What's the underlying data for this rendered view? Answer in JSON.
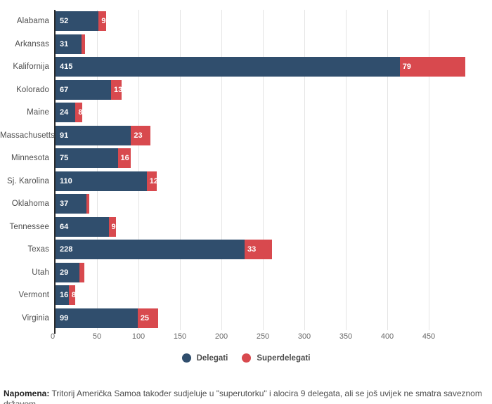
{
  "chart_data": {
    "type": "bar",
    "orientation": "horizontal",
    "stacked": true,
    "grid": true,
    "legend_position": "bottom",
    "xlim": [
      0,
      495
    ],
    "x_ticks": [
      0,
      50,
      100,
      150,
      200,
      250,
      300,
      350,
      400,
      450
    ],
    "categories": [
      "Alabama",
      "Arkansas",
      "Kalifornija",
      "Kolorado",
      "Maine",
      "Massachusetts",
      "Minnesota",
      "Sj. Karolina",
      "Oklahoma",
      "Tennessee",
      "Texas",
      "Utah",
      "Vermont",
      "Virginia"
    ],
    "series": [
      {
        "name": "Delegati",
        "color": "#304e6d",
        "values": [
          52,
          31,
          415,
          67,
          24,
          91,
          75,
          110,
          37,
          64,
          228,
          29,
          16,
          99
        ]
      },
      {
        "name": "Superdelegati",
        "color": "#d8494e",
        "values": [
          9,
          5,
          79,
          13,
          8,
          23,
          16,
          12,
          4,
          9,
          33,
          6,
          8,
          25
        ]
      }
    ],
    "rows": [
      {
        "state": "Alabama",
        "delegati": 52,
        "superdelegati": 9,
        "super_label_visible": true
      },
      {
        "state": "Arkansas",
        "delegati": 31,
        "superdelegati": 5,
        "super_label_visible": false
      },
      {
        "state": "Kalifornija",
        "delegati": 415,
        "superdelegati": 79,
        "super_label_visible": true
      },
      {
        "state": "Kolorado",
        "delegati": 67,
        "superdelegati": 13,
        "super_label_visible": true
      },
      {
        "state": "Maine",
        "delegati": 24,
        "superdelegati": 8,
        "super_label_visible": true
      },
      {
        "state": "Massachusetts",
        "delegati": 91,
        "superdelegati": 23,
        "super_label_visible": true
      },
      {
        "state": "Minnesota",
        "delegati": 75,
        "superdelegati": 16,
        "super_label_visible": true
      },
      {
        "state": "Sj. Karolina",
        "delegati": 110,
        "superdelegati": 12,
        "super_label_visible": true
      },
      {
        "state": "Oklahoma",
        "delegati": 37,
        "superdelegati": 4,
        "super_label_visible": false
      },
      {
        "state": "Tennessee",
        "delegati": 64,
        "superdelegati": 9,
        "super_label_visible": true
      },
      {
        "state": "Texas",
        "delegati": 228,
        "superdelegati": 33,
        "super_label_visible": true
      },
      {
        "state": "Utah",
        "delegati": 29,
        "superdelegati": 6,
        "super_label_visible": false
      },
      {
        "state": "Vermont",
        "delegati": 16,
        "superdelegati": 8,
        "super_label_visible": true
      },
      {
        "state": "Virginia",
        "delegati": 99,
        "superdelegati": 25,
        "super_label_visible": true
      }
    ]
  },
  "colors": {
    "delegati": "#304e6d",
    "superdelegati": "#d8494e",
    "gridline": "#e4e4e4",
    "axis": "#2b2b2b"
  },
  "legend": {
    "items": [
      {
        "label": "Delegati",
        "color": "#304e6d"
      },
      {
        "label": "Superdelegati",
        "color": "#d8494e"
      }
    ]
  },
  "footnote": {
    "prefix": "Napomena:",
    "text": "Tritorij Američka Samoa također sudjeluje u \"superutorku\" i alocira 9 delegata, ali se još uvijek ne smatra saveznom državom"
  }
}
